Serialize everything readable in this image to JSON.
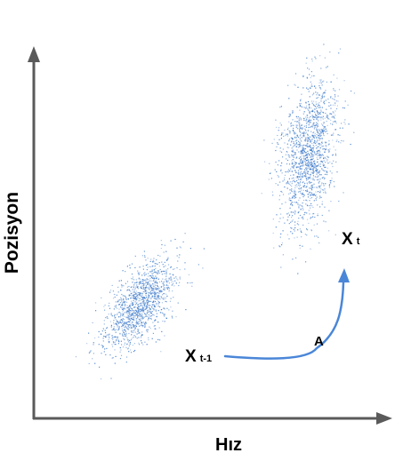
{
  "diagram": {
    "y_axis_label": "Pozisyon",
    "x_axis_label": "Hız",
    "state_prev": {
      "main": "X",
      "sub": "t-1"
    },
    "state_curr": {
      "main": "X",
      "sub": "t"
    },
    "transition_label": "A",
    "colors": {
      "axis": "#5a5a5a",
      "cloud": "#3a78c9",
      "arrow": "#4a86d8",
      "text": "#000000"
    }
  }
}
